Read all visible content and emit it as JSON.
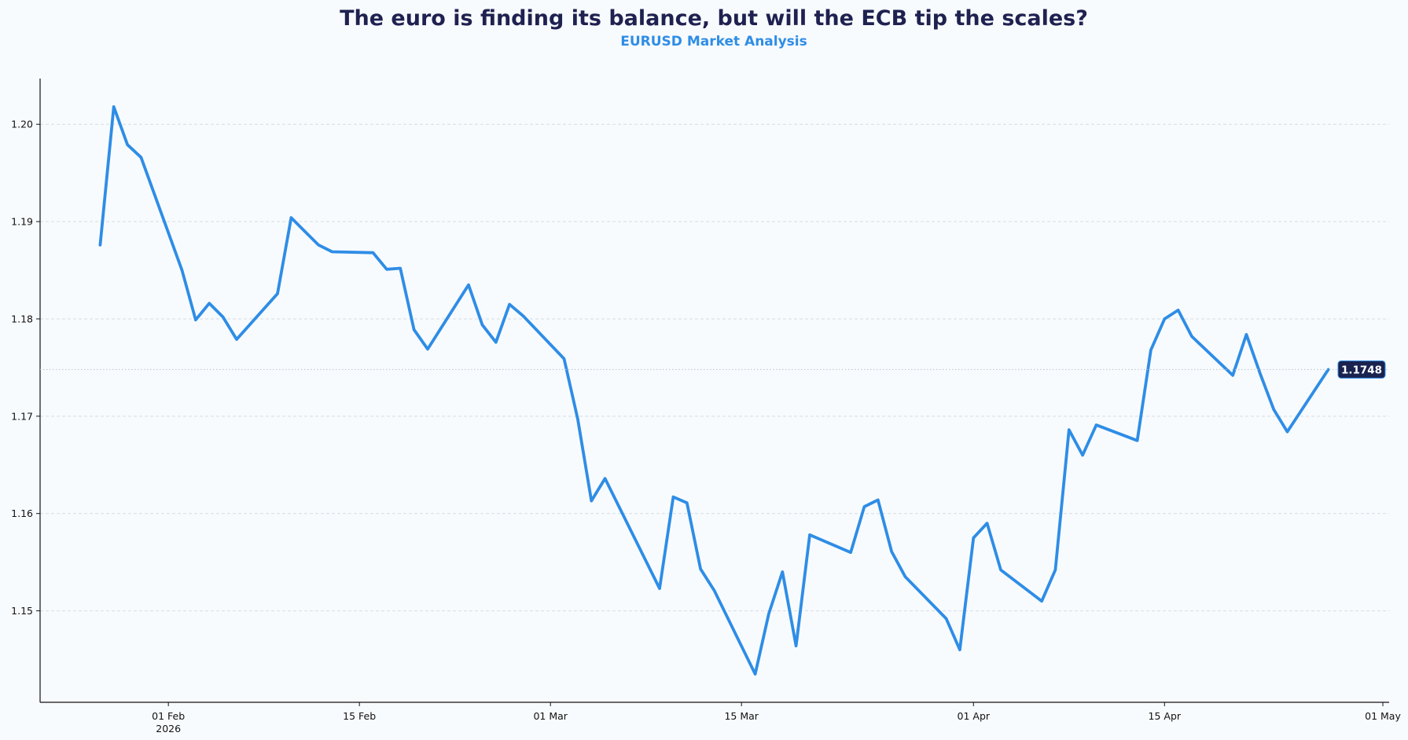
{
  "chart_data": {
    "type": "line",
    "title": "The euro is finding its balance, but will the ECB tip the scales?",
    "subtitle": "EURUSD Market Analysis",
    "xlabel": "",
    "ylabel": "",
    "xlim": [
      "2026-01-22",
      "2026-05-01"
    ],
    "ylim": [
      1.1406,
      1.2047
    ],
    "grid": "horizontal dashed",
    "legend": "none",
    "colors": {
      "line": "#2e8de6",
      "title": "#1f2150",
      "subtitle": "#2e8de6",
      "badge": "#1a2250",
      "background": "#f8fbfe"
    },
    "x_ticks": [
      {
        "date": "2026-02-01",
        "label": "01 Feb",
        "sublabel": "2026"
      },
      {
        "date": "2026-02-15",
        "label": "15 Feb"
      },
      {
        "date": "2026-03-01",
        "label": "01 Mar"
      },
      {
        "date": "2026-03-15",
        "label": "15 Mar"
      },
      {
        "date": "2026-04-01",
        "label": "01 Apr"
      },
      {
        "date": "2026-04-15",
        "label": "15 Apr"
      },
      {
        "date": "2026-05-01",
        "label": "01 May"
      }
    ],
    "y_ticks": [
      1.15,
      1.16,
      1.17,
      1.18,
      1.19,
      1.2
    ],
    "y_tick_labels": [
      "1.15",
      "1.16",
      "1.17",
      "1.18",
      "1.19",
      "1.20"
    ],
    "last_value_label": "1.1748",
    "last_value": 1.1748,
    "series": [
      {
        "x": [
          "2026-01-27",
          "2026-01-28",
          "2026-01-29",
          "2026-01-30",
          "2026-02-02",
          "2026-02-03",
          "2026-02-04",
          "2026-02-05",
          "2026-02-06",
          "2026-02-09",
          "2026-02-10",
          "2026-02-11",
          "2026-02-12",
          "2026-02-13",
          "2026-02-16",
          "2026-02-17",
          "2026-02-18",
          "2026-02-19",
          "2026-02-20",
          "2026-02-23",
          "2026-02-24",
          "2026-02-25",
          "2026-02-26",
          "2026-02-27",
          "2026-03-02",
          "2026-03-03",
          "2026-03-04",
          "2026-03-05",
          "2026-03-09",
          "2026-03-10",
          "2026-03-11",
          "2026-03-12",
          "2026-03-13",
          "2026-03-16",
          "2026-03-17",
          "2026-03-18",
          "2026-03-19",
          "2026-03-20",
          "2026-03-23",
          "2026-03-24",
          "2026-03-25",
          "2026-03-26",
          "2026-03-27",
          "2026-03-30",
          "2026-03-31",
          "2026-04-01",
          "2026-04-02",
          "2026-04-03",
          "2026-04-06",
          "2026-04-07",
          "2026-04-08",
          "2026-04-09",
          "2026-04-10",
          "2026-04-13",
          "2026-04-14",
          "2026-04-15",
          "2026-04-16",
          "2026-04-17",
          "2026-04-20",
          "2026-04-21",
          "2026-04-22",
          "2026-04-23",
          "2026-04-24",
          "2026-04-27"
        ],
        "y": [
          1.1876,
          1.2018,
          1.1979,
          1.1966,
          1.185,
          1.1799,
          1.1816,
          1.1802,
          1.1779,
          1.1826,
          1.1904,
          1.189,
          1.1876,
          1.1869,
          1.1868,
          1.1851,
          1.1852,
          1.1789,
          1.1769,
          1.1835,
          1.1794,
          1.1776,
          1.1815,
          1.1803,
          1.1759,
          1.1697,
          1.1613,
          1.1636,
          1.1523,
          1.1617,
          1.1611,
          1.1543,
          1.1521,
          1.1435,
          1.1497,
          1.154,
          1.1464,
          1.1578,
          1.156,
          1.1607,
          1.1614,
          1.1561,
          1.1535,
          1.1492,
          1.146,
          1.1575,
          1.159,
          1.1542,
          1.151,
          1.1542,
          1.1686,
          1.166,
          1.1691,
          1.1675,
          1.1768,
          1.18,
          1.1809,
          1.1782,
          1.1742,
          1.1784,
          1.1744,
          1.1707,
          1.1684,
          1.1748
        ]
      }
    ]
  }
}
